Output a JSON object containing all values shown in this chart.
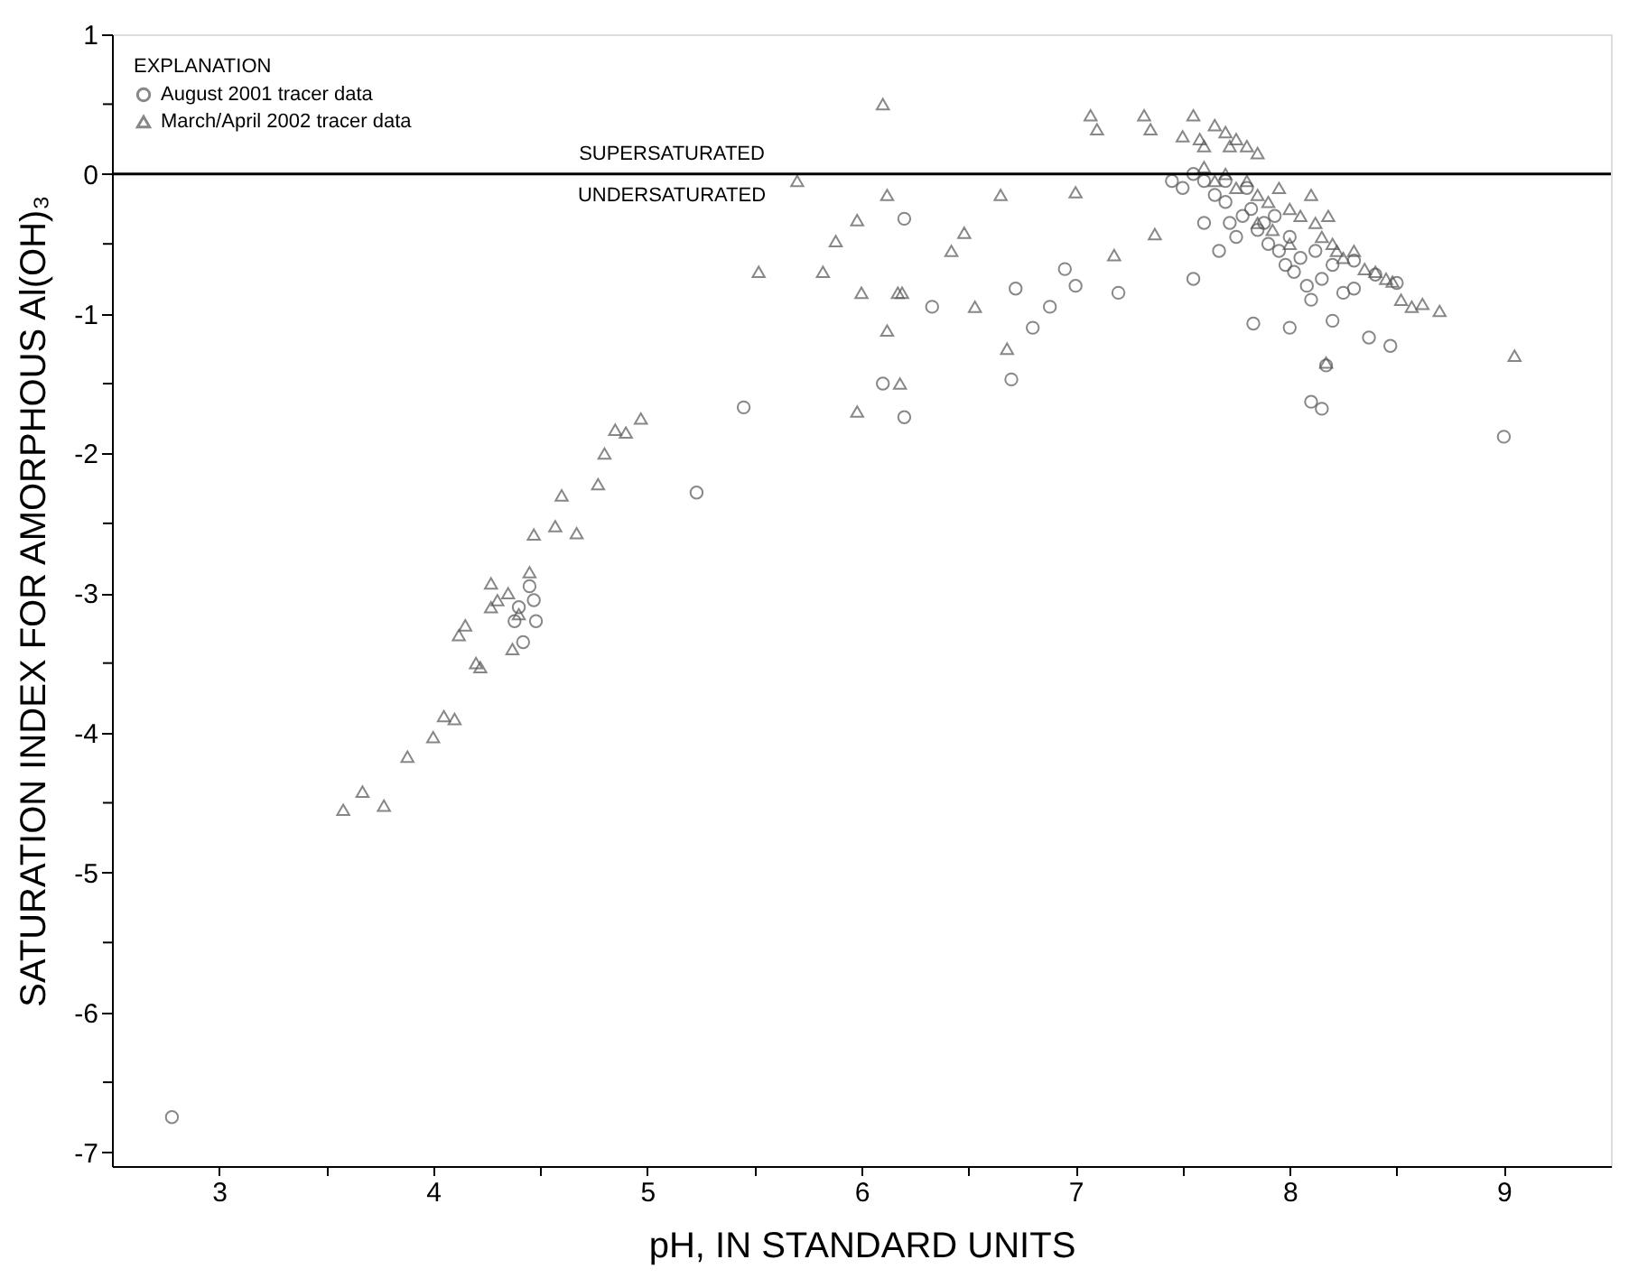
{
  "chart_data": {
    "type": "scatter",
    "xlabel": "pH, IN STANDARD UNITS",
    "ylabel": "SATURATION INDEX FOR AMORPHOUS Al(OH)₃",
    "legend_title": "EXPLANATION",
    "legend": "top left",
    "grid": false,
    "xlim": [
      2.5,
      9.5
    ],
    "ylim": [
      -7.1,
      1
    ],
    "xticks": [
      3,
      {
        "value": 3.5,
        "label": null
      },
      4,
      {
        "value": 4.5,
        "label": null
      },
      5,
      {
        "value": 5.5,
        "label": null
      },
      6,
      {
        "value": 6.5,
        "label": null
      },
      7,
      {
        "value": 7.5,
        "label": null
      },
      8,
      {
        "value": 8.5,
        "label": null
      },
      9
    ],
    "yticks": [
      -7,
      {
        "value": -6.5,
        "label": null
      },
      -6,
      {
        "value": -5.5,
        "label": null
      },
      -5,
      {
        "value": -4.5,
        "label": null
      },
      -4,
      {
        "value": -3.5,
        "label": null
      },
      -3,
      {
        "value": -2.5,
        "label": null
      },
      -2,
      {
        "value": -1.5,
        "label": null
      },
      -1,
      {
        "value": -0.5,
        "label": null
      },
      0,
      {
        "value": 0.5,
        "label": null
      },
      1
    ],
    "ref_lines": [
      {
        "axis": "y",
        "value": 0,
        "color": "#000000",
        "line_style": "solid"
      }
    ],
    "annotations": [
      "SUPERSATURATED",
      "UNDERSATURATED"
    ],
    "series": [
      {
        "name": "August 2001 tracer data",
        "color": "#555555",
        "marker": "circle",
        "x": [
          2.78,
          4.45,
          4.48,
          4.42,
          4.4,
          4.47,
          4.38,
          5.23,
          5.45,
          6.1,
          6.2,
          6.2,
          6.33,
          6.72,
          6.7,
          6.8,
          6.88,
          6.95,
          7.0,
          7.2,
          7.55,
          7.6,
          7.67,
          7.83,
          8.0,
          8.1,
          8.15,
          8.17,
          8.37,
          8.47,
          9.0,
          8.2,
          8.3,
          7.45,
          7.5,
          7.6,
          7.65,
          7.7,
          7.72,
          7.75,
          7.78,
          7.8,
          7.82,
          7.85,
          7.88,
          7.9,
          7.93,
          7.95,
          7.98,
          8.0,
          8.02,
          8.05,
          8.08,
          8.1,
          8.12,
          8.15,
          8.2,
          8.25,
          8.3,
          8.4,
          8.5,
          7.7,
          7.55
        ],
        "values": [
          -6.75,
          -2.95,
          -3.2,
          -3.35,
          -3.1,
          -3.05,
          -3.2,
          -2.28,
          -1.67,
          -1.5,
          -1.74,
          -0.32,
          -0.95,
          -0.82,
          -1.47,
          -1.1,
          -0.95,
          -0.68,
          -0.8,
          -0.85,
          -0.75,
          -0.35,
          -0.55,
          -1.07,
          -1.1,
          -1.63,
          -1.68,
          -1.37,
          -1.17,
          -1.23,
          -1.88,
          -1.05,
          -0.82,
          -0.05,
          -0.1,
          -0.05,
          -0.15,
          -0.2,
          -0.35,
          -0.45,
          -0.3,
          -0.1,
          -0.25,
          -0.4,
          -0.35,
          -0.5,
          -0.3,
          -0.55,
          -0.65,
          -0.45,
          -0.7,
          -0.6,
          -0.8,
          -0.9,
          -0.55,
          -0.75,
          -0.65,
          -0.85,
          -0.62,
          -0.72,
          -0.78,
          -0.05,
          0.0
        ]
      },
      {
        "name": "March/April 2002 tracer data",
        "color": "#555555",
        "marker": "triangle",
        "x": [
          3.58,
          3.67,
          3.77,
          3.88,
          4.0,
          4.05,
          4.1,
          4.12,
          4.15,
          4.2,
          4.22,
          4.27,
          4.27,
          4.3,
          4.35,
          4.37,
          4.4,
          4.45,
          4.47,
          4.57,
          4.6,
          4.67,
          4.77,
          4.8,
          4.85,
          4.9,
          4.97,
          5.52,
          5.7,
          5.82,
          5.88,
          5.98,
          5.98,
          6.0,
          6.1,
          6.12,
          6.12,
          6.17,
          6.19,
          6.18,
          6.42,
          6.48,
          6.53,
          6.65,
          6.68,
          7.0,
          7.07,
          7.1,
          7.18,
          7.32,
          7.35,
          7.37,
          7.5,
          7.55,
          7.58,
          7.6,
          7.65,
          7.7,
          7.72,
          7.75,
          7.8,
          7.85,
          7.6,
          7.65,
          7.7,
          7.75,
          7.8,
          7.85,
          7.9,
          7.95,
          8.0,
          8.05,
          8.1,
          8.12,
          8.15,
          8.18,
          8.2,
          8.22,
          8.25,
          8.3,
          8.35,
          8.4,
          8.45,
          8.48,
          8.52,
          8.57,
          8.62,
          8.7,
          9.05,
          8.17,
          7.92,
          8.0,
          7.85
        ],
        "values": [
          -4.55,
          -4.42,
          -4.52,
          -4.17,
          -4.03,
          -3.88,
          -3.9,
          -3.3,
          -3.23,
          -3.5,
          -3.53,
          -3.1,
          -2.93,
          -3.05,
          -3.0,
          -3.4,
          -3.15,
          -2.85,
          -2.58,
          -2.52,
          -2.3,
          -2.57,
          -2.22,
          -2.0,
          -1.83,
          -1.85,
          -1.75,
          -0.7,
          -0.05,
          -0.7,
          -0.48,
          -0.33,
          -1.7,
          -0.85,
          0.5,
          -0.15,
          -1.12,
          -0.85,
          -0.85,
          -1.5,
          -0.55,
          -0.42,
          -0.95,
          -0.15,
          -1.25,
          -0.13,
          0.42,
          0.32,
          -0.58,
          0.42,
          0.32,
          -0.43,
          0.27,
          0.42,
          0.25,
          0.2,
          0.35,
          0.3,
          0.2,
          0.25,
          0.2,
          0.15,
          0.05,
          -0.05,
          0.0,
          -0.1,
          -0.05,
          -0.15,
          -0.2,
          -0.1,
          -0.25,
          -0.3,
          -0.15,
          -0.35,
          -0.45,
          -0.3,
          -0.5,
          -0.55,
          -0.6,
          -0.55,
          -0.68,
          -0.7,
          -0.75,
          -0.77,
          -0.9,
          -0.95,
          -0.93,
          -0.98,
          -1.3,
          -1.35,
          -0.4,
          -0.5,
          -0.35
        ]
      }
    ]
  }
}
